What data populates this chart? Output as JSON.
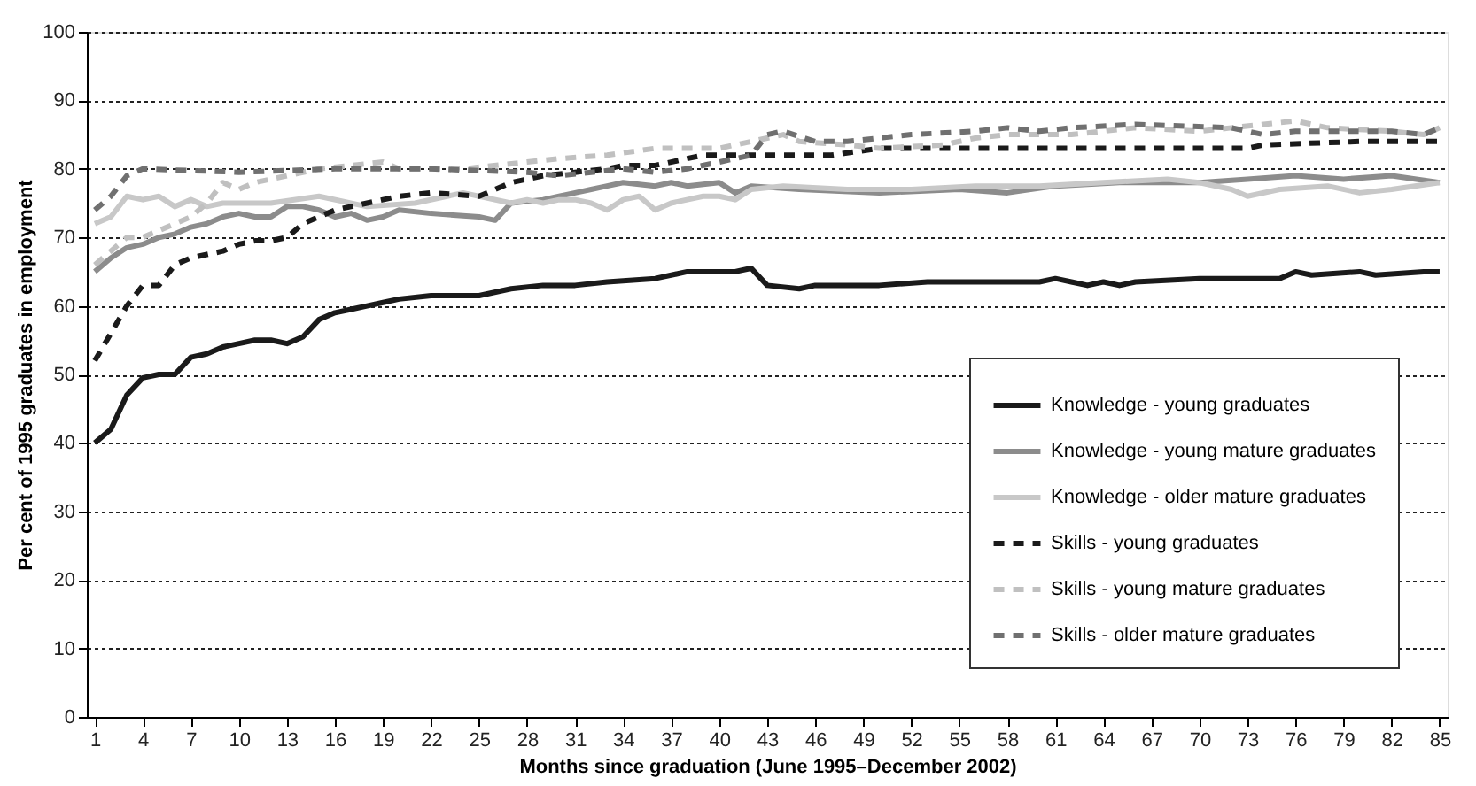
{
  "chart_data": {
    "type": "line",
    "xlabel": "Months since graduation (June 1995–December  2002)",
    "ylabel": "Per cent of 1995 graduates in employment",
    "xlim": [
      0.5,
      85.5
    ],
    "xticks": [
      1,
      4,
      7,
      10,
      13,
      16,
      19,
      22,
      25,
      28,
      31,
      34,
      37,
      40,
      43,
      46,
      49,
      52,
      55,
      58,
      61,
      64,
      67,
      70,
      73,
      76,
      79,
      82,
      85
    ],
    "ylim": [
      0,
      100
    ],
    "yticks": [
      0,
      10,
      20,
      30,
      40,
      50,
      60,
      70,
      80,
      90,
      100
    ],
    "grid": "y",
    "legend": "bottom right",
    "marker": "none",
    "series": [
      {
        "name": "Knowledge - young graduates",
        "color": "#1a1a1a",
        "line_style": "solid",
        "x": [
          1,
          2,
          3,
          4,
          5,
          6,
          7,
          8,
          9,
          10,
          11,
          12,
          13,
          14,
          15,
          16,
          17,
          18,
          19,
          20,
          22,
          25,
          27,
          29,
          31,
          33,
          36,
          38,
          40,
          41,
          42,
          43,
          45,
          46,
          50,
          53,
          60,
          61,
          62,
          63,
          64,
          65,
          66,
          70,
          75,
          76,
          77,
          80,
          81,
          84,
          85
        ],
        "values": [
          40,
          42,
          47,
          49.5,
          50,
          50,
          52.5,
          53,
          54,
          54.5,
          55,
          55,
          54.5,
          55.5,
          58,
          59,
          59.5,
          60,
          60.5,
          61,
          61.5,
          61.5,
          62.5,
          63,
          63,
          63.5,
          64,
          65,
          65,
          65,
          65.5,
          63,
          62.5,
          63,
          63,
          63.5,
          63.5,
          64,
          63.5,
          63,
          63.5,
          63,
          63.5,
          64,
          64,
          65,
          64.5,
          65,
          64.5,
          65,
          65
        ]
      },
      {
        "name": "Knowledge - young mature graduates",
        "color": "#8c8c8c",
        "line_style": "solid",
        "x": [
          1,
          2,
          3,
          4,
          5,
          6,
          7,
          8,
          9,
          10,
          11,
          12,
          13,
          14,
          15,
          16,
          17,
          18,
          19,
          20,
          22,
          25,
          26,
          27,
          29,
          30,
          31,
          32,
          33,
          34,
          36,
          37,
          38,
          40,
          41,
          42,
          45,
          50,
          55,
          58,
          61,
          65,
          70,
          73,
          76,
          79,
          82,
          85
        ],
        "values": [
          65,
          67,
          68.5,
          69,
          70,
          70.5,
          71.5,
          72,
          73,
          73.5,
          73,
          73,
          74.5,
          74.5,
          74,
          73,
          73.5,
          72.5,
          73,
          74,
          73.5,
          73,
          72.5,
          75,
          75.5,
          76,
          76.5,
          77,
          77.5,
          78,
          77.5,
          78,
          77.5,
          78,
          76.5,
          77.5,
          77,
          76.5,
          77,
          76.5,
          77.5,
          78,
          78,
          78.5,
          79,
          78.5,
          79,
          78
        ]
      },
      {
        "name": "Knowledge - older mature graduates",
        "color": "#c8c8c8",
        "line_style": "solid",
        "x": [
          1,
          2,
          3,
          4,
          5,
          6,
          7,
          8,
          9,
          12,
          15,
          18,
          21,
          24,
          27,
          28,
          29,
          30,
          31,
          32,
          33,
          34,
          35,
          36,
          37,
          39,
          40,
          41,
          42,
          44,
          48,
          52,
          56,
          60,
          64,
          68,
          70,
          72,
          73,
          75,
          78,
          80,
          82,
          85
        ],
        "values": [
          72,
          73,
          76,
          75.5,
          76,
          74.5,
          75.5,
          74.5,
          75,
          75,
          76,
          74.5,
          75,
          76.5,
          75,
          75.5,
          75,
          75.5,
          75.5,
          75,
          74,
          75.5,
          76,
          74,
          75,
          76,
          76,
          75.5,
          77,
          77.5,
          77,
          77,
          77.5,
          77.5,
          78,
          78.5,
          78,
          77,
          76,
          77,
          77.5,
          76.5,
          77,
          78
        ]
      },
      {
        "name": "Skills - young graduates",
        "color": "#1a1a1a",
        "line_style": "dashed",
        "x": [
          1,
          2,
          3,
          4,
          5,
          6,
          7,
          8,
          9,
          10,
          11,
          12,
          13,
          14,
          15,
          16,
          17,
          18,
          19,
          20,
          22,
          25,
          26,
          27,
          28,
          29,
          31,
          33,
          34,
          36,
          37,
          38,
          39,
          42,
          47,
          50,
          60,
          73,
          74,
          80,
          85
        ],
        "values": [
          52,
          56,
          60,
          63,
          63,
          66,
          67,
          67.5,
          68,
          69,
          69.5,
          69.5,
          70,
          72,
          73,
          74,
          74.5,
          75,
          75.5,
          76,
          76.5,
          76,
          77,
          78,
          78.5,
          79,
          79.5,
          80,
          80.5,
          80.5,
          81,
          81.5,
          82,
          82,
          82,
          83,
          83,
          83,
          83.5,
          84,
          84
        ]
      },
      {
        "name": "Skills - young mature graduates",
        "color": "#c0c0c0",
        "line_style": "dashed",
        "x": [
          1,
          2,
          3,
          4,
          5,
          6,
          7,
          8,
          9,
          10,
          11,
          13,
          15,
          19,
          20,
          24,
          28,
          30,
          33,
          36,
          40,
          42,
          43,
          44,
          45,
          48,
          50,
          54,
          56,
          58,
          62,
          64,
          66,
          70,
          72,
          76,
          78,
          82,
          84,
          85
        ],
        "values": [
          66,
          68,
          70,
          70,
          71,
          72,
          73,
          75,
          78,
          77,
          78,
          79,
          80,
          81,
          80,
          80,
          81,
          81.5,
          82,
          83,
          83,
          84,
          84.5,
          85,
          84,
          83.5,
          83,
          83.5,
          84.5,
          85,
          85,
          85.5,
          86,
          85.5,
          86,
          87,
          86,
          85.5,
          85,
          86
        ]
      },
      {
        "name": "Skills - older mature graduates",
        "color": "#707070",
        "line_style": "dashed",
        "x": [
          1,
          2,
          3,
          4,
          10,
          16,
          22,
          28,
          30,
          32,
          34,
          36,
          38,
          40,
          42,
          43,
          44,
          46,
          48,
          50,
          52,
          56,
          58,
          60,
          62,
          66,
          72,
          74,
          76,
          82,
          84,
          85
        ],
        "values": [
          74,
          76,
          79,
          80,
          79.5,
          80,
          80,
          79.5,
          79,
          79.5,
          80,
          79.5,
          80,
          81,
          82,
          85,
          85.5,
          84,
          84,
          84.5,
          85,
          85.5,
          86,
          85.5,
          86,
          86.5,
          86,
          85,
          85.5,
          85.5,
          85,
          86
        ]
      }
    ]
  }
}
